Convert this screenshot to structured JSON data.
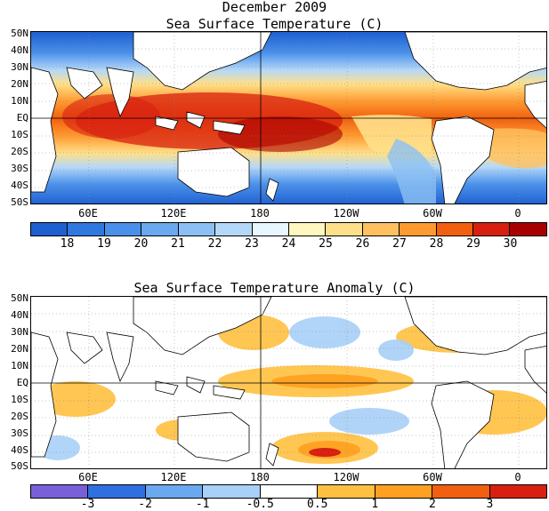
{
  "header": {
    "date_title": "December 2009"
  },
  "sst_panel": {
    "title": "Sea Surface Temperature (C)",
    "lat_labels": [
      "50N",
      "40N",
      "30N",
      "20N",
      "10N",
      "EQ",
      "10S",
      "20S",
      "30S",
      "40S",
      "50S"
    ],
    "lon_labels": [
      "60E",
      "120E",
      "180",
      "120W",
      "60W",
      "0"
    ],
    "colorbar": {
      "colors": [
        "#1f5fd0",
        "#2f78e0",
        "#4a90ea",
        "#6aa8f0",
        "#8cc0f4",
        "#b4d8f8",
        "#e8f6ff",
        "#fff6c0",
        "#ffe08a",
        "#ffc060",
        "#ff9a30",
        "#f06010",
        "#d82010",
        "#a80000"
      ],
      "labels": [
        "18",
        "19",
        "20",
        "21",
        "22",
        "23",
        "24",
        "25",
        "26",
        "27",
        "28",
        "29",
        "30"
      ]
    }
  },
  "anomaly_panel": {
    "title": "Sea Surface Temperature Anomaly (C)",
    "lat_labels": [
      "50N",
      "40N",
      "30N",
      "20N",
      "10N",
      "EQ",
      "10S",
      "20S",
      "30S",
      "40S",
      "50S"
    ],
    "lon_labels": [
      "60E",
      "120E",
      "180",
      "120W",
      "60W",
      "0"
    ],
    "colorbar": {
      "colors": [
        "#7a60d8",
        "#2f70e0",
        "#6aa8f0",
        "#a8d0f8",
        "#ffffff",
        "#ffc040",
        "#ffa020",
        "#f06010",
        "#d82010"
      ],
      "labels": [
        "-3",
        "-2",
        "-1",
        "-0.5",
        "0.5",
        "1",
        "2",
        "3"
      ]
    }
  }
}
